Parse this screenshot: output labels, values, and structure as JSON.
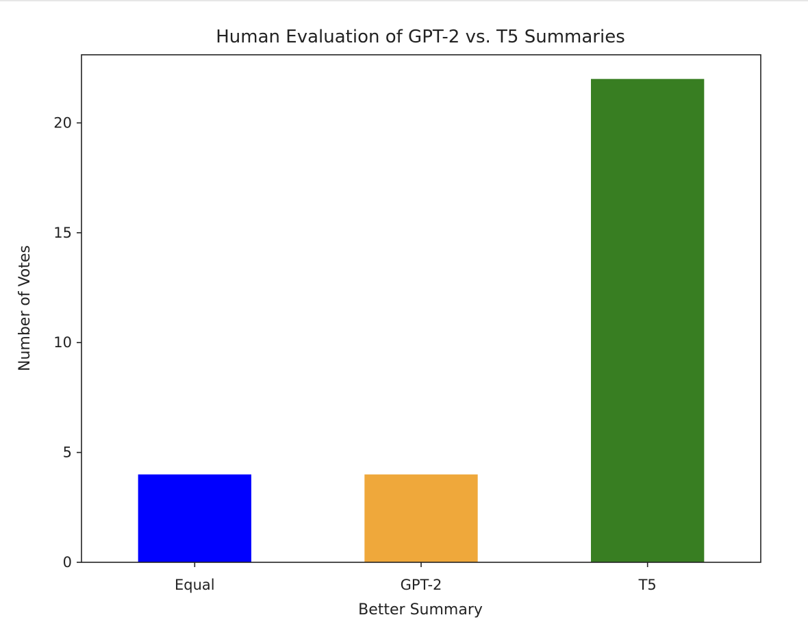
{
  "chart_data": {
    "type": "bar",
    "title": "Human Evaluation of GPT-2 vs. T5 Summaries",
    "xlabel": "Better Summary",
    "ylabel": "Number of Votes",
    "categories": [
      "Equal",
      "GPT-2",
      "T5"
    ],
    "values": [
      4,
      4,
      22
    ],
    "colors": [
      "#0000ff",
      "#efa83b",
      "#387e22"
    ],
    "ylim": [
      0,
      23.1
    ],
    "yticks": [
      0,
      5,
      10,
      15,
      20
    ],
    "grid": false,
    "legend": "none"
  }
}
